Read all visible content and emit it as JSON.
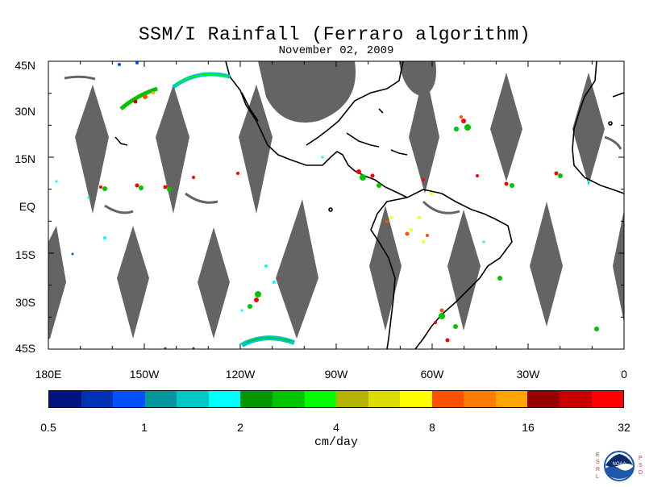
{
  "title": "SSM/I Rainfall (Ferraro algorithm)",
  "subtitle": "November 02, 2009",
  "latitude_labels": [
    "45N",
    "30N",
    "15N",
    "EQ",
    "15S",
    "30S",
    "45S"
  ],
  "longitude_labels": [
    "180E",
    "150W",
    "120W",
    "90W",
    "60W",
    "30W",
    "0"
  ],
  "legend": {
    "colors": [
      "#00137e",
      "#0032b5",
      "#0050ff",
      "#00969b",
      "#00c6c6",
      "#00ffff",
      "#009600",
      "#00c400",
      "#00ff00",
      "#b4b400",
      "#dcdc00",
      "#ffff00",
      "#ff5000",
      "#ff7d00",
      "#ffa500",
      "#960000",
      "#c80000",
      "#ff0000"
    ],
    "tick_labels": [
      "0.5",
      "1",
      "2",
      "4",
      "8",
      "16",
      "32"
    ],
    "units": "cm/day"
  },
  "colors": {
    "land_outline": "#000000",
    "missing_swath": "#646464",
    "background": "#ffffff"
  },
  "logo": {
    "left_letters": [
      "E",
      "S",
      "R",
      "L"
    ],
    "right_letters": [
      "P",
      "S",
      "D"
    ],
    "emblem_text": "NOAA"
  }
}
